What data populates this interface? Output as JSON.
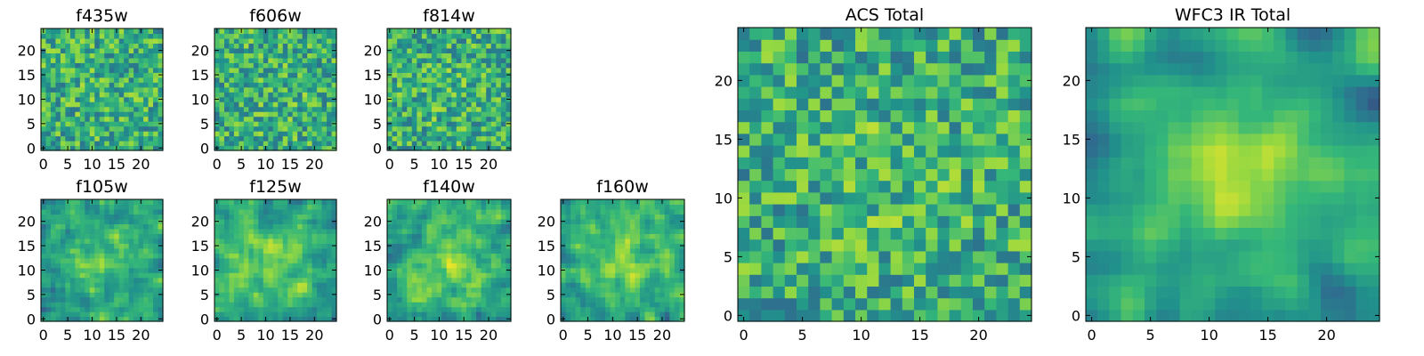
{
  "chart_data": [
    {
      "type": "heatmap",
      "title": "f435w",
      "grid": false,
      "xlim": [
        -0.5,
        24.5
      ],
      "ylim": [
        -0.5,
        24.5
      ],
      "xticks": [
        0,
        5,
        10,
        15,
        20
      ],
      "yticks": [
        0,
        5,
        10,
        15,
        20
      ],
      "size": 25,
      "seed": 11,
      "smooth": 0,
      "blob": 0.05,
      "values": "25x25 pixel grid, approximated (not legible in image)"
    },
    {
      "type": "heatmap",
      "title": "f606w",
      "grid": false,
      "xlim": [
        -0.5,
        24.5
      ],
      "ylim": [
        -0.5,
        24.5
      ],
      "xticks": [
        0,
        5,
        10,
        15,
        20
      ],
      "yticks": [
        0,
        5,
        10,
        15,
        20
      ],
      "size": 25,
      "seed": 23,
      "smooth": 0,
      "blob": 0.08,
      "values": "25x25 pixel grid, approximated"
    },
    {
      "type": "heatmap",
      "title": "f814w",
      "grid": false,
      "xlim": [
        -0.5,
        24.5
      ],
      "ylim": [
        -0.5,
        24.5
      ],
      "xticks": [
        0,
        5,
        10,
        15,
        20
      ],
      "yticks": [
        0,
        5,
        10,
        15,
        20
      ],
      "size": 25,
      "seed": 37,
      "smooth": 0,
      "blob": 0.12,
      "values": "25x25 pixel grid, approximated"
    },
    {
      "type": "heatmap",
      "title": "f105w",
      "grid": false,
      "xlim": [
        -0.5,
        24.5
      ],
      "ylim": [
        -0.5,
        24.5
      ],
      "xticks": [
        0,
        5,
        10,
        15,
        20
      ],
      "yticks": [
        0,
        5,
        10,
        15,
        20
      ],
      "size": 25,
      "seed": 41,
      "smooth": 1,
      "blob": 0.55,
      "values": "25x25 pixel grid, approximated"
    },
    {
      "type": "heatmap",
      "title": "f125w",
      "grid": false,
      "xlim": [
        -0.5,
        24.5
      ],
      "ylim": [
        -0.5,
        24.5
      ],
      "xticks": [
        0,
        5,
        10,
        15,
        20
      ],
      "yticks": [
        0,
        5,
        10,
        15,
        20
      ],
      "size": 25,
      "seed": 53,
      "smooth": 1,
      "blob": 0.45,
      "values": "25x25 pixel grid, approximated"
    },
    {
      "type": "heatmap",
      "title": "f140w",
      "grid": false,
      "xlim": [
        -0.5,
        24.5
      ],
      "ylim": [
        -0.5,
        24.5
      ],
      "xticks": [
        0,
        5,
        10,
        15,
        20
      ],
      "yticks": [
        0,
        5,
        10,
        15,
        20
      ],
      "size": 25,
      "seed": 67,
      "smooth": 1,
      "blob": 0.55,
      "values": "25x25 pixel grid, approximated"
    },
    {
      "type": "heatmap",
      "title": "f160w",
      "grid": false,
      "xlim": [
        -0.5,
        24.5
      ],
      "ylim": [
        -0.5,
        24.5
      ],
      "xticks": [
        0,
        5,
        10,
        15,
        20
      ],
      "yticks": [
        0,
        5,
        10,
        15,
        20
      ],
      "size": 25,
      "seed": 79,
      "smooth": 1,
      "blob": 0.65,
      "values": "25x25 pixel grid, approximated"
    },
    {
      "type": "heatmap",
      "title": "ACS Total",
      "grid": false,
      "xlim": [
        -0.5,
        24.5
      ],
      "ylim": [
        -0.5,
        24.5
      ],
      "xticks": [
        0,
        5,
        10,
        15,
        20
      ],
      "yticks": [
        0,
        5,
        10,
        15,
        20
      ],
      "size": 25,
      "seed": 97,
      "smooth": 0,
      "blob": 0.15,
      "values": "25x25 pixel grid, approximated"
    },
    {
      "type": "heatmap",
      "title": "WFC3 IR Total",
      "grid": false,
      "xlim": [
        -0.5,
        24.5
      ],
      "ylim": [
        -0.5,
        24.5
      ],
      "xticks": [
        0,
        5,
        10,
        15,
        20
      ],
      "yticks": [
        0,
        5,
        10,
        15,
        20
      ],
      "size": 25,
      "seed": 113,
      "smooth": 2,
      "blob": 0.8,
      "values": "25x25 pixel grid, approximated"
    }
  ],
  "colormap": [
    "#440154",
    "#31688e",
    "#21918c",
    "#35b779",
    "#90d743",
    "#fde725"
  ]
}
